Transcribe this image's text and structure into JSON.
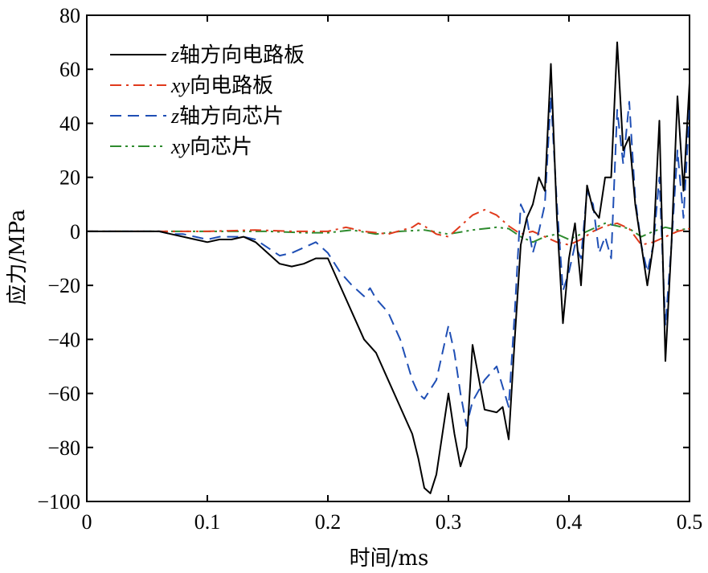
{
  "chart_data": {
    "type": "line",
    "xlabel": "时间/ms",
    "ylabel": "应力/MPa",
    "xlim": [
      0,
      0.5
    ],
    "ylim": [
      -100,
      80
    ],
    "x_ticks": [
      "0",
      "0.1",
      "0.2",
      "0.3",
      "0.4",
      "0.5"
    ],
    "y_ticks": [
      "80",
      "60",
      "40",
      "20",
      "0",
      "−20",
      "−40",
      "−60",
      "−80",
      "−100"
    ],
    "grid": false,
    "legend_position": "top-left",
    "series": [
      {
        "name_italic": "z",
        "name_rest": "轴方向电路板",
        "color": "#000000",
        "dash": "solid",
        "x": [
          0,
          0.02,
          0.04,
          0.06,
          0.07,
          0.08,
          0.09,
          0.1,
          0.11,
          0.12,
          0.13,
          0.14,
          0.15,
          0.16,
          0.17,
          0.18,
          0.19,
          0.2,
          0.21,
          0.22,
          0.23,
          0.24,
          0.25,
          0.26,
          0.27,
          0.275,
          0.28,
          0.285,
          0.29,
          0.295,
          0.3,
          0.305,
          0.31,
          0.315,
          0.32,
          0.33,
          0.34,
          0.345,
          0.35,
          0.355,
          0.36,
          0.365,
          0.37,
          0.375,
          0.38,
          0.385,
          0.39,
          0.395,
          0.4,
          0.405,
          0.41,
          0.415,
          0.42,
          0.425,
          0.43,
          0.435,
          0.44,
          0.445,
          0.45,
          0.455,
          0.46,
          0.465,
          0.47,
          0.475,
          0.48,
          0.485,
          0.49,
          0.495,
          0.5
        ],
        "y": [
          0,
          0,
          0,
          0,
          -1,
          -2,
          -3,
          -4,
          -3,
          -3,
          -2,
          -4,
          -8,
          -12,
          -13,
          -12,
          -10,
          -10,
          -20,
          -30,
          -40,
          -45,
          -55,
          -65,
          -75,
          -84,
          -95,
          -97,
          -90,
          -75,
          -60,
          -75,
          -87,
          -80,
          -42,
          -66,
          -67,
          -65,
          -77,
          -40,
          -5,
          5,
          10,
          20,
          15,
          62,
          5,
          -34,
          -10,
          3,
          -20,
          17,
          8,
          5,
          20,
          20,
          70,
          30,
          35,
          10,
          -5,
          -20,
          -5,
          41,
          -48,
          -5,
          50,
          15,
          55
        ]
      },
      {
        "name_italic": "xy",
        "name_rest": "向电路板",
        "color": "#e03a1c",
        "dash": "14 6 3 6",
        "x": [
          0,
          0.05,
          0.1,
          0.14,
          0.17,
          0.2,
          0.215,
          0.23,
          0.25,
          0.27,
          0.275,
          0.28,
          0.29,
          0.3,
          0.31,
          0.32,
          0.33,
          0.34,
          0.35,
          0.36,
          0.37,
          0.38,
          0.39,
          0.4,
          0.41,
          0.42,
          0.43,
          0.44,
          0.45,
          0.46,
          0.47,
          0.48,
          0.49,
          0.5
        ],
        "y": [
          0,
          0,
          0,
          0.5,
          0,
          0,
          1.5,
          0,
          -1,
          1.5,
          3,
          2,
          -1,
          -2,
          2,
          6,
          8,
          6,
          2,
          -1,
          0,
          -2,
          -4,
          -5,
          -3,
          0,
          2,
          3,
          1,
          -5,
          -4,
          -2,
          0,
          1
        ]
      },
      {
        "name_italic": "z",
        "name_rest": "轴方向芯片",
        "color": "#1f4fb5",
        "dash": "14 8",
        "x": [
          0,
          0.02,
          0.04,
          0.06,
          0.07,
          0.08,
          0.09,
          0.1,
          0.11,
          0.12,
          0.13,
          0.14,
          0.15,
          0.16,
          0.17,
          0.18,
          0.19,
          0.2,
          0.21,
          0.22,
          0.23,
          0.235,
          0.24,
          0.25,
          0.26,
          0.27,
          0.275,
          0.28,
          0.29,
          0.3,
          0.305,
          0.31,
          0.315,
          0.32,
          0.33,
          0.34,
          0.35,
          0.355,
          0.36,
          0.365,
          0.37,
          0.375,
          0.38,
          0.385,
          0.39,
          0.395,
          0.4,
          0.405,
          0.41,
          0.415,
          0.42,
          0.425,
          0.43,
          0.435,
          0.44,
          0.445,
          0.45,
          0.455,
          0.46,
          0.465,
          0.47,
          0.475,
          0.48,
          0.485,
          0.49,
          0.495,
          0.5
        ],
        "y": [
          0,
          0,
          0,
          0,
          -1,
          -1,
          -2,
          -3,
          -2,
          -2,
          -2,
          -3,
          -6,
          -9,
          -8,
          -6,
          -4,
          -8,
          -15,
          -20,
          -24,
          -21,
          -25,
          -30,
          -40,
          -55,
          -60,
          -62,
          -55,
          -35,
          -45,
          -60,
          -72,
          -63,
          -55,
          -50,
          -65,
          -30,
          10,
          5,
          -8,
          0,
          10,
          50,
          10,
          -22,
          -15,
          -5,
          -10,
          15,
          10,
          -8,
          -2,
          -10,
          45,
          25,
          48,
          12,
          -5,
          -15,
          -5,
          20,
          -35,
          -5,
          30,
          5,
          45
        ]
      },
      {
        "name_italic": "xy",
        "name_rest": "向芯片",
        "color": "#2e8b2e",
        "dash": "14 5 3 5 3 5",
        "x": [
          0,
          0.05,
          0.1,
          0.15,
          0.18,
          0.2,
          0.22,
          0.24,
          0.26,
          0.28,
          0.3,
          0.32,
          0.34,
          0.35,
          0.36,
          0.37,
          0.38,
          0.39,
          0.4,
          0.41,
          0.42,
          0.43,
          0.44,
          0.45,
          0.46,
          0.47,
          0.48,
          0.49,
          0.5
        ],
        "y": [
          0,
          0,
          0,
          0,
          -0.5,
          -0.5,
          0.5,
          -1,
          0,
          0.5,
          -1,
          0.5,
          1.5,
          1,
          -2,
          -4,
          -2,
          -1,
          -3,
          -1,
          1,
          3,
          2,
          1,
          -2,
          0,
          1.5,
          0.5,
          1
        ]
      }
    ]
  }
}
